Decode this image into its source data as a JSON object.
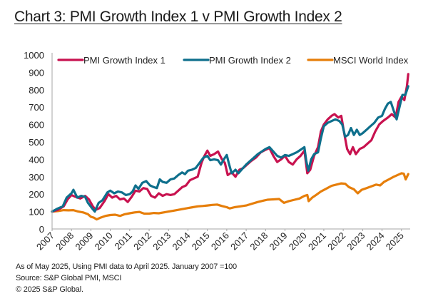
{
  "chart_data": {
    "type": "line",
    "title": "Chart 3: PMI Growth Index 1 v PMI Growth Index 2",
    "xlabel": "",
    "ylabel": "",
    "ylim": [
      0,
      1000
    ],
    "xlim": [
      2007,
      2025.45
    ],
    "yticks": [
      "0",
      "100",
      "200",
      "300",
      "400",
      "500",
      "600",
      "700",
      "800",
      "900",
      "1000"
    ],
    "xticks": [
      "2007",
      "2008",
      "2009",
      "2010",
      "2011",
      "2012",
      "2013",
      "2014",
      "2015",
      "2016",
      "2017",
      "2018",
      "2019",
      "2020",
      "2021",
      "2022",
      "2023",
      "2024",
      "2025"
    ],
    "grid": false,
    "legend": "top",
    "series": [
      {
        "name": "PMI Growth Index 1",
        "color": "#c8124f",
        "points": [
          [
            2007.0,
            100
          ],
          [
            2007.3,
            110
          ],
          [
            2007.6,
            130
          ],
          [
            2007.8,
            170
          ],
          [
            2008.0,
            195
          ],
          [
            2008.2,
            185
          ],
          [
            2008.45,
            175
          ],
          [
            2008.7,
            190
          ],
          [
            2008.9,
            170
          ],
          [
            2009.1,
            130
          ],
          [
            2009.25,
            110
          ],
          [
            2009.45,
            120
          ],
          [
            2009.7,
            160
          ],
          [
            2009.9,
            200
          ],
          [
            2010.1,
            180
          ],
          [
            2010.3,
            190
          ],
          [
            2010.5,
            170
          ],
          [
            2010.7,
            175
          ],
          [
            2010.9,
            155
          ],
          [
            2011.1,
            185
          ],
          [
            2011.3,
            220
          ],
          [
            2011.5,
            215
          ],
          [
            2011.7,
            235
          ],
          [
            2011.9,
            230
          ],
          [
            2012.1,
            190
          ],
          [
            2012.3,
            180
          ],
          [
            2012.5,
            205
          ],
          [
            2012.7,
            190
          ],
          [
            2012.9,
            200
          ],
          [
            2013.1,
            195
          ],
          [
            2013.3,
            200
          ],
          [
            2013.5,
            220
          ],
          [
            2013.7,
            240
          ],
          [
            2013.9,
            250
          ],
          [
            2014.1,
            280
          ],
          [
            2014.3,
            290
          ],
          [
            2014.5,
            300
          ],
          [
            2014.7,
            380
          ],
          [
            2014.85,
            420
          ],
          [
            2015.0,
            450
          ],
          [
            2015.15,
            420
          ],
          [
            2015.35,
            430
          ],
          [
            2015.55,
            445
          ],
          [
            2015.75,
            400
          ],
          [
            2015.9,
            380
          ],
          [
            2016.05,
            310
          ],
          [
            2016.25,
            325
          ],
          [
            2016.45,
            300
          ],
          [
            2016.65,
            340
          ],
          [
            2016.85,
            350
          ],
          [
            2017.05,
            370
          ],
          [
            2017.25,
            390
          ],
          [
            2017.5,
            410
          ],
          [
            2017.75,
            440
          ],
          [
            2018.0,
            455
          ],
          [
            2018.2,
            465
          ],
          [
            2018.4,
            420
          ],
          [
            2018.6,
            385
          ],
          [
            2018.8,
            400
          ],
          [
            2019.0,
            420
          ],
          [
            2019.2,
            385
          ],
          [
            2019.4,
            370
          ],
          [
            2019.6,
            400
          ],
          [
            2019.8,
            420
          ],
          [
            2020.0,
            450
          ],
          [
            2020.15,
            320
          ],
          [
            2020.3,
            340
          ],
          [
            2020.5,
            420
          ],
          [
            2020.7,
            470
          ],
          [
            2020.85,
            560
          ],
          [
            2021.0,
            600
          ],
          [
            2021.2,
            630
          ],
          [
            2021.4,
            650
          ],
          [
            2021.55,
            660
          ],
          [
            2021.75,
            640
          ],
          [
            2021.9,
            650
          ],
          [
            2022.05,
            550
          ],
          [
            2022.2,
            460
          ],
          [
            2022.35,
            430
          ],
          [
            2022.5,
            470
          ],
          [
            2022.65,
            430
          ],
          [
            2022.85,
            460
          ],
          [
            2023.05,
            470
          ],
          [
            2023.25,
            490
          ],
          [
            2023.45,
            510
          ],
          [
            2023.65,
            560
          ],
          [
            2023.85,
            600
          ],
          [
            2024.05,
            620
          ],
          [
            2024.3,
            640
          ],
          [
            2024.5,
            660
          ],
          [
            2024.7,
            640
          ],
          [
            2024.85,
            730
          ],
          [
            2025.0,
            760
          ],
          [
            2025.15,
            740
          ],
          [
            2025.28,
            820
          ],
          [
            2025.35,
            890
          ]
        ]
      },
      {
        "name": "PMI Growth Index 2",
        "color": "#0e6f8c",
        "points": [
          [
            2007.0,
            100
          ],
          [
            2007.25,
            115
          ],
          [
            2007.55,
            130
          ],
          [
            2007.75,
            180
          ],
          [
            2008.0,
            205
          ],
          [
            2008.1,
            225
          ],
          [
            2008.3,
            180
          ],
          [
            2008.5,
            190
          ],
          [
            2008.7,
            185
          ],
          [
            2008.85,
            150
          ],
          [
            2009.05,
            120
          ],
          [
            2009.2,
            100
          ],
          [
            2009.4,
            150
          ],
          [
            2009.6,
            165
          ],
          [
            2009.85,
            210
          ],
          [
            2010.0,
            220
          ],
          [
            2010.2,
            205
          ],
          [
            2010.4,
            215
          ],
          [
            2010.6,
            210
          ],
          [
            2010.8,
            195
          ],
          [
            2011.0,
            200
          ],
          [
            2011.15,
            215
          ],
          [
            2011.3,
            250
          ],
          [
            2011.45,
            230
          ],
          [
            2011.65,
            265
          ],
          [
            2011.85,
            275
          ],
          [
            2012.05,
            250
          ],
          [
            2012.25,
            240
          ],
          [
            2012.4,
            235
          ],
          [
            2012.55,
            285
          ],
          [
            2012.7,
            270
          ],
          [
            2012.9,
            265
          ],
          [
            2013.1,
            285
          ],
          [
            2013.3,
            290
          ],
          [
            2013.5,
            310
          ],
          [
            2013.7,
            325
          ],
          [
            2013.85,
            315
          ],
          [
            2014.0,
            335
          ],
          [
            2014.2,
            340
          ],
          [
            2014.4,
            350
          ],
          [
            2014.6,
            380
          ],
          [
            2014.8,
            410
          ],
          [
            2015.0,
            420
          ],
          [
            2015.15,
            395
          ],
          [
            2015.35,
            400
          ],
          [
            2015.55,
            395
          ],
          [
            2015.7,
            370
          ],
          [
            2015.85,
            400
          ],
          [
            2016.0,
            425
          ],
          [
            2016.1,
            380
          ],
          [
            2016.25,
            320
          ],
          [
            2016.45,
            340
          ],
          [
            2016.6,
            320
          ],
          [
            2016.8,
            345
          ],
          [
            2017.0,
            370
          ],
          [
            2017.2,
            390
          ],
          [
            2017.4,
            410
          ],
          [
            2017.6,
            430
          ],
          [
            2017.8,
            445
          ],
          [
            2018.0,
            460
          ],
          [
            2018.2,
            470
          ],
          [
            2018.4,
            445
          ],
          [
            2018.6,
            420
          ],
          [
            2018.8,
            410
          ],
          [
            2019.0,
            425
          ],
          [
            2019.2,
            420
          ],
          [
            2019.4,
            430
          ],
          [
            2019.6,
            440
          ],
          [
            2019.8,
            455
          ],
          [
            2020.0,
            470
          ],
          [
            2020.1,
            390
          ],
          [
            2020.2,
            335
          ],
          [
            2020.35,
            400
          ],
          [
            2020.5,
            430
          ],
          [
            2020.7,
            440
          ],
          [
            2020.85,
            520
          ],
          [
            2021.0,
            590
          ],
          [
            2021.2,
            610
          ],
          [
            2021.4,
            620
          ],
          [
            2021.6,
            630
          ],
          [
            2021.8,
            620
          ],
          [
            2021.95,
            600
          ],
          [
            2022.1,
            530
          ],
          [
            2022.25,
            540
          ],
          [
            2022.4,
            580
          ],
          [
            2022.55,
            540
          ],
          [
            2022.7,
            570
          ],
          [
            2022.85,
            540
          ],
          [
            2023.0,
            550
          ],
          [
            2023.2,
            570
          ],
          [
            2023.4,
            590
          ],
          [
            2023.6,
            610
          ],
          [
            2023.8,
            640
          ],
          [
            2024.0,
            650
          ],
          [
            2024.15,
            690
          ],
          [
            2024.3,
            720
          ],
          [
            2024.45,
            730
          ],
          [
            2024.6,
            680
          ],
          [
            2024.75,
            630
          ],
          [
            2024.9,
            700
          ],
          [
            2025.05,
            770
          ],
          [
            2025.2,
            770
          ],
          [
            2025.35,
            820
          ]
        ]
      },
      {
        "name": "MSCI World Index",
        "color": "#e67e0a",
        "points": [
          [
            2007.0,
            100
          ],
          [
            2007.3,
            103
          ],
          [
            2007.6,
            108
          ],
          [
            2007.85,
            107
          ],
          [
            2008.1,
            108
          ],
          [
            2008.35,
            100
          ],
          [
            2008.6,
            95
          ],
          [
            2008.85,
            85
          ],
          [
            2009.0,
            70
          ],
          [
            2009.15,
            65
          ],
          [
            2009.3,
            55
          ],
          [
            2009.5,
            65
          ],
          [
            2009.75,
            75
          ],
          [
            2010.0,
            80
          ],
          [
            2010.25,
            82
          ],
          [
            2010.5,
            75
          ],
          [
            2010.75,
            85
          ],
          [
            2011.0,
            90
          ],
          [
            2011.25,
            95
          ],
          [
            2011.5,
            98
          ],
          [
            2011.75,
            88
          ],
          [
            2012.0,
            88
          ],
          [
            2012.25,
            92
          ],
          [
            2012.5,
            90
          ],
          [
            2012.75,
            95
          ],
          [
            2013.0,
            100
          ],
          [
            2013.25,
            105
          ],
          [
            2013.5,
            110
          ],
          [
            2013.75,
            115
          ],
          [
            2014.0,
            120
          ],
          [
            2014.25,
            125
          ],
          [
            2014.5,
            130
          ],
          [
            2014.75,
            132
          ],
          [
            2015.0,
            135
          ],
          [
            2015.25,
            138
          ],
          [
            2015.5,
            140
          ],
          [
            2015.75,
            132
          ],
          [
            2016.0,
            125
          ],
          [
            2016.15,
            118
          ],
          [
            2016.4,
            125
          ],
          [
            2016.7,
            130
          ],
          [
            2017.0,
            135
          ],
          [
            2017.3,
            145
          ],
          [
            2017.6,
            155
          ],
          [
            2017.9,
            163
          ],
          [
            2018.1,
            168
          ],
          [
            2018.4,
            170
          ],
          [
            2018.7,
            172
          ],
          [
            2018.95,
            150
          ],
          [
            2019.2,
            160
          ],
          [
            2019.5,
            168
          ],
          [
            2019.75,
            175
          ],
          [
            2020.0,
            190
          ],
          [
            2020.15,
            195
          ],
          [
            2020.22,
            160
          ],
          [
            2020.4,
            180
          ],
          [
            2020.6,
            195
          ],
          [
            2020.85,
            215
          ],
          [
            2021.1,
            230
          ],
          [
            2021.4,
            248
          ],
          [
            2021.65,
            255
          ],
          [
            2021.9,
            262
          ],
          [
            2022.1,
            260
          ],
          [
            2022.3,
            240
          ],
          [
            2022.55,
            228
          ],
          [
            2022.75,
            205
          ],
          [
            2022.95,
            225
          ],
          [
            2023.2,
            235
          ],
          [
            2023.45,
            245
          ],
          [
            2023.7,
            255
          ],
          [
            2023.9,
            250
          ],
          [
            2024.1,
            270
          ],
          [
            2024.35,
            285
          ],
          [
            2024.6,
            300
          ],
          [
            2024.8,
            310
          ],
          [
            2025.0,
            320
          ],
          [
            2025.12,
            318
          ],
          [
            2025.22,
            285
          ],
          [
            2025.35,
            315
          ]
        ]
      }
    ]
  },
  "notes": [
    "As of May 2025, Using PMI data to April 2025. January 2007 =100",
    "Source: S&P Global PMI, MSCI",
    "© 2025 S&P Global."
  ]
}
